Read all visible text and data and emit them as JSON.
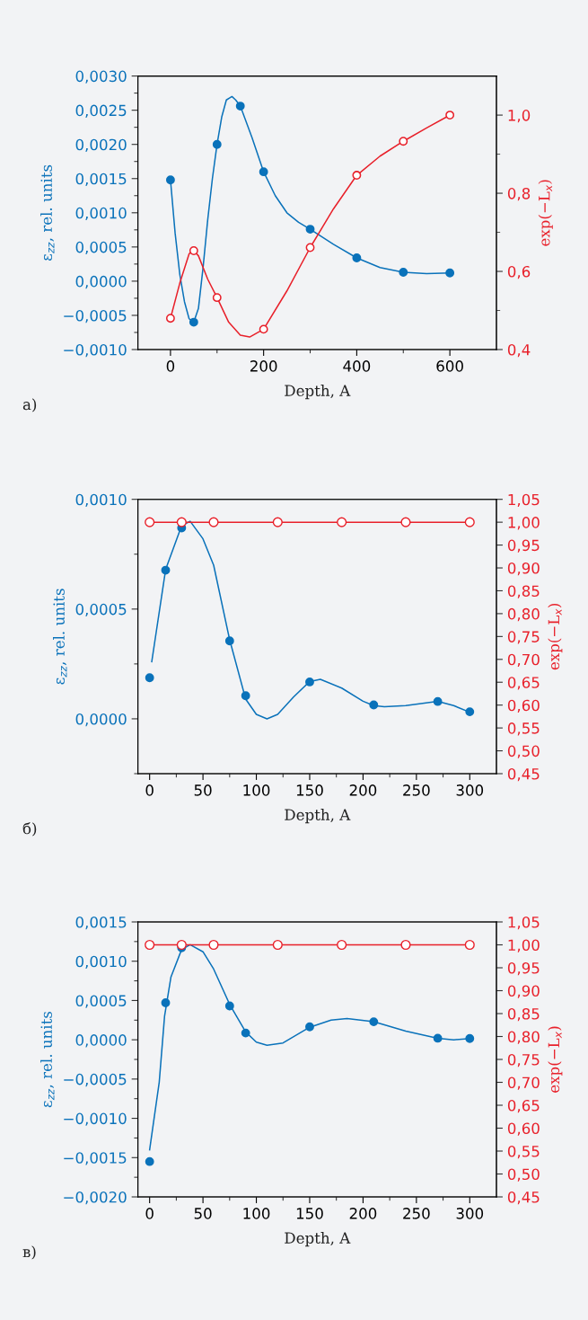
{
  "chart_data": [
    {
      "type": "line",
      "xlabel": "Depth, A",
      "ylabel": "ε$_{zz}$, rel. units",
      "y2label": "exp(−L$_{x}$)",
      "annotations": [
        "а)"
      ],
      "xlim": [
        -70,
        700
      ],
      "xticks": [
        0,
        {
          "value": 100,
          "label": null
        },
        200,
        {
          "value": 300,
          "label": null
        },
        400,
        {
          "value": 500,
          "label": null
        },
        600
      ],
      "ylim": [
        -0.001,
        0.003
      ],
      "yticks": [
        {
          "value": -0.001,
          "label": "−0,0010"
        },
        {
          "value": -0.00075,
          "label": null
        },
        {
          "value": -0.0005,
          "label": "−0,0005"
        },
        {
          "value": -0.00025,
          "label": null
        },
        {
          "value": 0,
          "label": "0,0000"
        },
        {
          "value": 0.00025,
          "label": null
        },
        {
          "value": 0.0005,
          "label": "0,0005"
        },
        {
          "value": 0.00075,
          "label": null
        },
        {
          "value": 0.001,
          "label": "0,0010"
        },
        {
          "value": 0.00125,
          "label": null
        },
        {
          "value": 0.0015,
          "label": "0,0015"
        },
        {
          "value": 0.00175,
          "label": null
        },
        {
          "value": 0.002,
          "label": "0,0020"
        },
        {
          "value": 0.00225,
          "label": null
        },
        {
          "value": 0.0025,
          "label": "0,0025"
        },
        {
          "value": 0.00275,
          "label": null
        },
        {
          "value": 0.003,
          "label": "0,0030"
        }
      ],
      "y2lim": [
        0.4,
        1.1
      ],
      "y2ticks": [
        {
          "value": 0.4,
          "label": "0,4"
        },
        {
          "value": 0.5,
          "label": null
        },
        {
          "value": 0.6,
          "label": "0,6"
        },
        {
          "value": 0.7,
          "label": null
        },
        {
          "value": 0.8,
          "label": "0,8"
        },
        {
          "value": 0.9,
          "label": null
        },
        {
          "value": 1.0,
          "label": "1,0"
        }
      ],
      "series": [
        {
          "type": "scatter",
          "color": "#0a72ba",
          "marker": "circle",
          "x": [
            0,
            50,
            100,
            150,
            200,
            300,
            400,
            500,
            600
          ],
          "values": [
            0.00148,
            -0.0006,
            0.002,
            0.00256,
            0.0016,
            0.00076,
            0.00034,
            0.00013,
            0.00012
          ]
        },
        {
          "color": "#0a72ba",
          "marker": "none",
          "x": [
            0,
            10,
            20,
            30,
            40,
            50,
            60,
            70,
            80,
            90,
            100,
            110,
            120,
            132,
            140,
            150,
            175,
            200,
            225,
            250,
            275,
            300,
            350,
            400,
            450,
            500,
            550,
            600
          ],
          "values": [
            0.00148,
            0.0007,
            0.0001,
            -0.0003,
            -0.00055,
            -0.0006,
            -0.0004,
            0.0002,
            0.0009,
            0.0015,
            0.002,
            0.0024,
            0.00265,
            0.0027,
            0.00265,
            0.00256,
            0.0021,
            0.0016,
            0.00125,
            0.001,
            0.00086,
            0.00076,
            0.00054,
            0.00034,
            0.0002,
            0.00013,
            0.00011,
            0.00012
          ]
        },
        {
          "type": "scatter",
          "color": "#e8202a",
          "marker": "circle",
          "axis": "y2",
          "x": [
            0,
            50,
            100,
            200,
            300,
            400,
            500,
            600
          ],
          "values": [
            0.48,
            0.653,
            0.533,
            0.452,
            0.661,
            0.846,
            0.933,
            1.0
          ]
        },
        {
          "color": "#e8202a",
          "marker": "none",
          "axis": "y2",
          "x": [
            0,
            20,
            40,
            50,
            60,
            80,
            100,
            125,
            150,
            170,
            200,
            250,
            300,
            350,
            400,
            450,
            500,
            550,
            600
          ],
          "values": [
            0.48,
            0.57,
            0.645,
            0.653,
            0.64,
            0.58,
            0.533,
            0.47,
            0.437,
            0.432,
            0.452,
            0.55,
            0.661,
            0.76,
            0.846,
            0.895,
            0.933,
            0.967,
            1.0
          ]
        }
      ]
    },
    {
      "type": "line",
      "xlabel": "Depth, A",
      "ylabel": "ε$_{zz}$, rel. units",
      "y2label": "exp(−L$_{x}$)",
      "annotations": [
        "б)"
      ],
      "xlim": [
        -11,
        325
      ],
      "xticks": [
        0,
        {
          "value": 25,
          "label": null
        },
        50,
        {
          "value": 75,
          "label": null
        },
        100,
        {
          "value": 125,
          "label": null
        },
        150,
        {
          "value": 175,
          "label": null
        },
        200,
        {
          "value": 225,
          "label": null
        },
        250,
        {
          "value": 275,
          "label": null
        },
        300
      ],
      "ylim": [
        -0.00025,
        0.001
      ],
      "yticks": [
        {
          "value": -0.00025,
          "label": null
        },
        {
          "value": 0,
          "label": "0,0000"
        },
        {
          "value": 0.00025,
          "label": null
        },
        {
          "value": 0.0005,
          "label": "0,0005"
        },
        {
          "value": 0.00075,
          "label": null
        },
        {
          "value": 0.001,
          "label": "0,0010"
        }
      ],
      "y2lim": [
        0.45,
        1.05
      ],
      "y2ticks": [
        {
          "value": 0.45,
          "label": "0,45"
        },
        {
          "value": 0.5,
          "label": "0,50"
        },
        {
          "value": 0.55,
          "label": "0,55"
        },
        {
          "value": 0.6,
          "label": "0,60"
        },
        {
          "value": 0.65,
          "label": "0,65"
        },
        {
          "value": 0.7,
          "label": "0,70"
        },
        {
          "value": 0.75,
          "label": "0,75"
        },
        {
          "value": 0.8,
          "label": "0,80"
        },
        {
          "value": 0.85,
          "label": "0,85"
        },
        {
          "value": 0.9,
          "label": "0,90"
        },
        {
          "value": 0.95,
          "label": "0,95"
        },
        {
          "value": 1.0,
          "label": "1,00"
        },
        {
          "value": 1.05,
          "label": "1,05"
        }
      ],
      "series": [
        {
          "type": "scatter",
          "color": "#0a72ba",
          "marker": "circle",
          "x": [
            0,
            15,
            30,
            75,
            90,
            150,
            210,
            270,
            300
          ],
          "values": [
            0.000187,
            0.000677,
            0.00087,
            0.000355,
            0.000105,
            0.000168,
            6.3e-05,
            7.9e-05,
            3.2e-05
          ]
        },
        {
          "color": "#0a72ba",
          "marker": "none",
          "x": [
            2,
            15,
            30,
            38,
            50,
            60,
            75,
            90,
            100,
            110,
            120,
            135,
            150,
            160,
            180,
            200,
            210,
            220,
            240,
            270,
            285,
            300
          ],
          "values": [
            0.00026,
            0.00068,
            0.00088,
            0.0009,
            0.00082,
            0.0007,
            0.00036,
            9e-05,
            2e-05,
            0.0,
            2e-05,
            0.0001,
            0.00017,
            0.00018,
            0.00014,
            8e-05,
            6e-05,
            5.5e-05,
            6e-05,
            8e-05,
            6e-05,
            3e-05
          ]
        },
        {
          "color": "#e8202a",
          "marker": "circle",
          "axis": "y2",
          "x": [
            0,
            30,
            60,
            120,
            180,
            240,
            300
          ],
          "values": [
            1.0,
            1.0,
            1.0,
            1.0,
            1.0,
            1.0,
            1.0
          ]
        }
      ]
    },
    {
      "type": "line",
      "xlabel": "Depth, A",
      "ylabel": "ε$_{zz}$, rel. units",
      "y2label": "exp(−L$_{x}$)",
      "annotations": [
        "в)"
      ],
      "xlim": [
        -11,
        325
      ],
      "xticks": [
        0,
        {
          "value": 25,
          "label": null
        },
        50,
        {
          "value": 75,
          "label": null
        },
        100,
        {
          "value": 125,
          "label": null
        },
        150,
        {
          "value": 175,
          "label": null
        },
        200,
        {
          "value": 225,
          "label": null
        },
        250,
        {
          "value": 275,
          "label": null
        },
        300
      ],
      "ylim": [
        -0.002,
        0.0015
      ],
      "yticks": [
        {
          "value": -0.002,
          "label": "−0,0020"
        },
        {
          "value": -0.00175,
          "label": null
        },
        {
          "value": -0.0015,
          "label": "−0,0015"
        },
        {
          "value": -0.00125,
          "label": null
        },
        {
          "value": -0.001,
          "label": "−0,0010"
        },
        {
          "value": -0.00075,
          "label": null
        },
        {
          "value": -0.0005,
          "label": "−0,0005"
        },
        {
          "value": -0.00025,
          "label": null
        },
        {
          "value": 0,
          "label": "0,0000"
        },
        {
          "value": 0.00025,
          "label": null
        },
        {
          "value": 0.0005,
          "label": "0,0005"
        },
        {
          "value": 0.00075,
          "label": null
        },
        {
          "value": 0.001,
          "label": "0,0010"
        },
        {
          "value": 0.00125,
          "label": null
        },
        {
          "value": 0.0015,
          "label": "0,0015"
        }
      ],
      "y2lim": [
        0.45,
        1.05
      ],
      "y2ticks": [
        {
          "value": 0.45,
          "label": "0,45"
        },
        {
          "value": 0.5,
          "label": "0,50"
        },
        {
          "value": 0.55,
          "label": "0,55"
        },
        {
          "value": 0.6,
          "label": "0,60"
        },
        {
          "value": 0.65,
          "label": "0,65"
        },
        {
          "value": 0.7,
          "label": "0,70"
        },
        {
          "value": 0.75,
          "label": "0,75"
        },
        {
          "value": 0.8,
          "label": "0,80"
        },
        {
          "value": 0.85,
          "label": "0,85"
        },
        {
          "value": 0.9,
          "label": "0,90"
        },
        {
          "value": 0.95,
          "label": "0,95"
        },
        {
          "value": 1.0,
          "label": "1,00"
        },
        {
          "value": 1.05,
          "label": "1,05"
        }
      ],
      "series": [
        {
          "type": "scatter",
          "color": "#0a72ba",
          "marker": "circle",
          "x": [
            0,
            15,
            30,
            75,
            90,
            150,
            210,
            270,
            300
          ],
          "values": [
            -0.00155,
            0.00047,
            0.00117,
            0.00043,
            8.6e-05,
            0.000164,
            0.000229,
            2e-05,
            1.6e-05
          ]
        },
        {
          "color": "#0a72ba",
          "marker": "none",
          "x": [
            0,
            9,
            14,
            20,
            30,
            38,
            50,
            60,
            75,
            90,
            100,
            110,
            125,
            150,
            170,
            185,
            210,
            240,
            270,
            285,
            300
          ],
          "values": [
            -0.0014,
            -0.00054,
            0.0003,
            0.0008,
            0.00115,
            0.00121,
            0.00112,
            0.0009,
            0.00045,
            0.0001,
            -3e-05,
            -7e-05,
            -4e-05,
            0.00016,
            0.00025,
            0.00027,
            0.00023,
            0.00011,
            2e-05,
            0.0,
            1.6e-05
          ]
        },
        {
          "color": "#e8202a",
          "marker": "circle",
          "axis": "y2",
          "x": [
            0,
            30,
            60,
            120,
            180,
            240,
            300
          ],
          "values": [
            1.0,
            1.0,
            1.0,
            1.0,
            1.0,
            1.0,
            1.0
          ]
        }
      ]
    }
  ]
}
